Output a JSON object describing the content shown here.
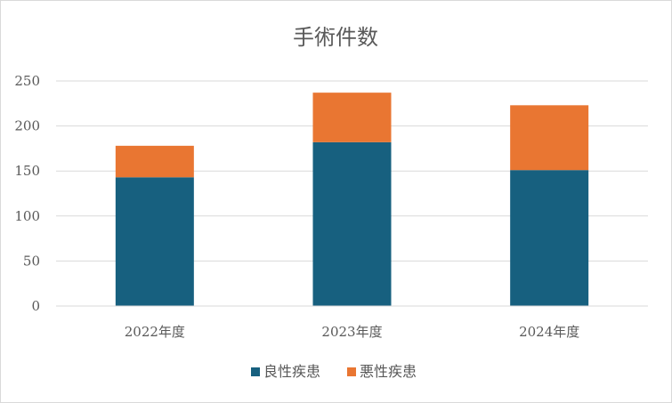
{
  "chart_data": {
    "type": "bar",
    "stacked": true,
    "title": "手術件数",
    "categories": [
      "2022年度",
      "2023年度",
      "2024年度"
    ],
    "series": [
      {
        "name": "良性疾患",
        "color": "#17607f",
        "values": [
          143,
          182,
          151
        ]
      },
      {
        "name": "悪性疾患",
        "color": "#e97632",
        "values": [
          35,
          55,
          72
        ]
      }
    ],
    "ylim": [
      0,
      250
    ],
    "yticks": [
      "0",
      "50",
      "100",
      "150",
      "200",
      "250"
    ],
    "ytick_values": [
      0,
      50,
      100,
      150,
      200,
      250
    ],
    "grid": true,
    "legend": "bottom",
    "xlabel": "",
    "ylabel": ""
  }
}
